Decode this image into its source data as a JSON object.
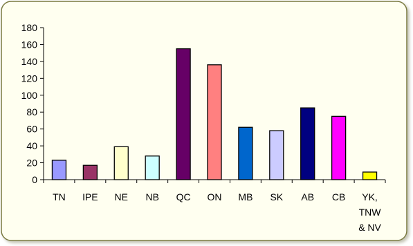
{
  "chart_data": {
    "type": "bar",
    "title": "",
    "xlabel": "",
    "ylabel": "",
    "categories": [
      [
        "TN"
      ],
      [
        "IPE"
      ],
      [
        "NE"
      ],
      [
        "NB"
      ],
      [
        "QC"
      ],
      [
        "ON"
      ],
      [
        "MB"
      ],
      [
        "SK"
      ],
      [
        "AB"
      ],
      [
        "CB"
      ],
      [
        "YK,",
        "TNW",
        "& NV"
      ]
    ],
    "values": [
      23,
      17,
      39,
      28,
      155,
      136,
      62,
      58,
      85,
      75,
      9
    ],
    "bar_colors": [
      "#9999ff",
      "#993366",
      "#ffffcc",
      "#ccffff",
      "#660066",
      "#ff8080",
      "#0066cc",
      "#ccccff",
      "#000080",
      "#ff00ff",
      "#ffff00"
    ],
    "ylim": [
      0,
      180
    ],
    "yticks": [
      0,
      20,
      40,
      60,
      80,
      100,
      120,
      140,
      160,
      180
    ],
    "grid": false,
    "legend": "none",
    "background": "#fffff0",
    "border_color": "#7a7a40"
  }
}
